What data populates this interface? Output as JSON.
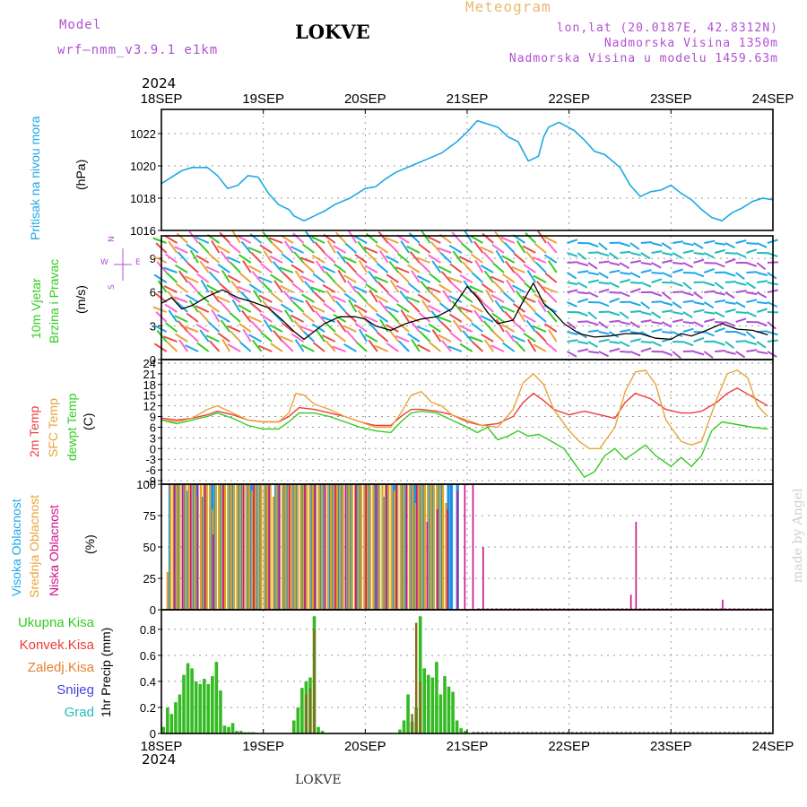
{
  "header": {
    "model_label": "Model",
    "model_name": "wrf–nmm_v3.9.1 e1km",
    "station": "LOKVE",
    "product": "Meteogram",
    "lonlat": "lon,lat (20.0187E, 42.8312N)",
    "altitude": "Nadmorska Visina 1350m",
    "model_altitude": "Nadmorska Visina u modelu 1459.63m",
    "footer_station": "LOKVE",
    "credit": "made by Angel"
  },
  "colors": {
    "pressure": "#1ea8e6",
    "temp_2m": "#ee3b3b",
    "sfc_temp": "#e8a43c",
    "dewpoint": "#33cc22",
    "cloud_high": "#1e90e6",
    "cloud_mid": "#daa520",
    "cloud_low": "#cc1188",
    "precip_total": "#33bb22",
    "precip_conv": "#e84c4c",
    "precip_frozen": "#e87f2e",
    "snow": "#4444dd",
    "hail": "#22bbbb",
    "header_purple": "#b050d0",
    "header_orange": "#e8b870"
  },
  "time_axis": {
    "year": "2024",
    "labels": [
      "18SEP",
      "19SEP",
      "20SEP",
      "21SEP",
      "22SEP",
      "23SEP",
      "24SEP"
    ]
  },
  "panels": {
    "pressure": {
      "label": "Pritisak na nivou mora",
      "unit": "(hPa)"
    },
    "wind": {
      "label1": "10m Vjetar",
      "label2": "Brzina i Pravac",
      "unit": "(m/s)",
      "compass": {
        "n": "N",
        "s": "S",
        "e": "E",
        "w": "W"
      }
    },
    "temp": {
      "label1": "2m Temp",
      "label2": "SFC Temp",
      "label3": "dewpt Temp",
      "unit": "(C)"
    },
    "cloud": {
      "label1": "Visoka Oblacnost",
      "label2": "Srednja Oblacnost",
      "label3": "Niska Oblacnost",
      "unit": "(%)"
    },
    "precip": {
      "label": "1hr Precip (mm)",
      "legend": [
        "Ukupna Kisa",
        "Konvek.Kisa",
        "Zaledj.Kisa",
        "Snijeg",
        "Grad"
      ]
    }
  },
  "chart_data": [
    {
      "type": "line",
      "title": "Pritisak na nivou mora",
      "ylabel": "(hPa)",
      "x_unit": "days since 18SEP 00UTC",
      "ylim": [
        1016,
        1023.5
      ],
      "yticks": [
        1016,
        1018,
        1020,
        1022
      ],
      "series": [
        {
          "name": "Pritisak na nivou mora",
          "x": [
            0,
            0.1,
            0.2,
            0.3,
            0.45,
            0.55,
            0.65,
            0.75,
            0.85,
            0.95,
            1.05,
            1.15,
            1.25,
            1.3,
            1.4,
            1.5,
            1.6,
            1.7,
            1.85,
            2.0,
            2.1,
            2.2,
            2.3,
            2.45,
            2.6,
            2.75,
            2.9,
            3.0,
            3.1,
            3.2,
            3.3,
            3.4,
            3.5,
            3.6,
            3.7,
            3.75,
            3.8,
            3.9,
            4.05,
            4.15,
            4.25,
            4.35,
            4.5,
            4.6,
            4.7,
            4.8,
            4.9,
            5.0,
            5.1,
            5.2,
            5.3,
            5.4,
            5.5,
            5.6,
            5.7,
            5.8,
            5.9,
            6.0
          ],
          "values": [
            1018.9,
            1019.3,
            1019.7,
            1019.9,
            1019.9,
            1019.4,
            1018.6,
            1018.8,
            1019.4,
            1019.3,
            1018.3,
            1017.6,
            1017.3,
            1016.9,
            1016.6,
            1016.9,
            1017.2,
            1017.6,
            1018.0,
            1018.6,
            1018.7,
            1019.2,
            1019.6,
            1020.0,
            1020.4,
            1020.8,
            1021.5,
            1022.1,
            1022.8,
            1022.6,
            1022.4,
            1021.8,
            1021.5,
            1020.3,
            1020.6,
            1021.8,
            1022.4,
            1022.7,
            1022.2,
            1021.6,
            1020.9,
            1020.7,
            1019.9,
            1018.8,
            1018.1,
            1018.4,
            1018.5,
            1018.8,
            1018.3,
            1017.9,
            1017.3,
            1016.8,
            1016.6,
            1017.1,
            1017.4,
            1017.8,
            1018.0,
            1017.9
          ]
        }
      ]
    },
    {
      "type": "line",
      "title": "10m Vjetar Brzina i Pravac",
      "ylabel": "(m/s)",
      "x_unit": "days since 18SEP 00UTC",
      "ylim": [
        0,
        11
      ],
      "yticks": [
        0,
        3,
        6,
        9
      ],
      "series": [
        {
          "name": "10m Vjetar",
          "x": [
            0,
            0.1,
            0.2,
            0.3,
            0.45,
            0.6,
            0.75,
            0.9,
            1.05,
            1.2,
            1.3,
            1.4,
            1.5,
            1.6,
            1.75,
            1.9,
            2.0,
            2.1,
            2.25,
            2.4,
            2.55,
            2.7,
            2.85,
            3.0,
            3.1,
            3.2,
            3.3,
            3.45,
            3.55,
            3.65,
            3.75,
            3.85,
            3.95,
            4.1,
            4.25,
            4.4,
            4.55,
            4.7,
            4.85,
            5.0,
            5.1,
            5.2,
            5.35,
            5.5,
            5.65,
            5.8,
            5.95
          ],
          "values": [
            5,
            5.5,
            4.5,
            4.8,
            5.6,
            6.2,
            5.5,
            5.1,
            4.6,
            3.4,
            2.5,
            1.8,
            2.5,
            3.2,
            3.8,
            3.8,
            3.6,
            3.0,
            2.6,
            3.2,
            3.6,
            3.8,
            4.5,
            6.5,
            5.5,
            4.2,
            3.2,
            3.5,
            5.2,
            6.8,
            5.0,
            4.2,
            3.2,
            2.3,
            2.0,
            2.1,
            2.3,
            2.3,
            1.9,
            1.8,
            2.3,
            2.1,
            2.6,
            3.2,
            2.7,
            2.6,
            2.2
          ]
        }
      ]
    },
    {
      "type": "line",
      "title": "2m Temp / SFC Temp / dewpt Temp",
      "ylabel": "(C)",
      "x_unit": "days since 18SEP 00UTC",
      "ylim": [
        -10,
        25
      ],
      "yticks": [
        -9,
        -6,
        -3,
        0,
        3,
        6,
        9,
        12,
        15,
        18,
        21,
        24
      ],
      "series": [
        {
          "name": "2m Temp",
          "x": [
            0,
            0.15,
            0.3,
            0.45,
            0.55,
            0.7,
            0.85,
            1.0,
            1.15,
            1.25,
            1.35,
            1.5,
            1.65,
            1.8,
            1.95,
            2.1,
            2.25,
            2.35,
            2.45,
            2.55,
            2.7,
            2.85,
            3.0,
            3.15,
            3.3,
            3.45,
            3.55,
            3.65,
            3.75,
            3.85,
            4.0,
            4.15,
            4.3,
            4.45,
            4.55,
            4.65,
            4.8,
            4.95,
            5.1,
            5.2,
            5.3,
            5.45,
            5.55,
            5.65,
            5.8,
            5.95
          ],
          "values": [
            8.5,
            8.0,
            8.5,
            9.5,
            10.5,
            9.5,
            8.0,
            7.5,
            7.5,
            9.0,
            11.5,
            11.0,
            10.0,
            9.0,
            7.5,
            6.5,
            6.5,
            9.0,
            11.0,
            11.0,
            10.5,
            9.5,
            7.5,
            6.5,
            7.0,
            9.0,
            13.0,
            15.5,
            13.5,
            11.0,
            9.5,
            10.5,
            9.5,
            8.5,
            13.0,
            15.5,
            14.0,
            11.0,
            10.0,
            10.0,
            10.5,
            13.0,
            15.5,
            17.0,
            14.5,
            12.0
          ]
        },
        {
          "name": "SFC Temp",
          "x": [
            0,
            0.15,
            0.3,
            0.45,
            0.55,
            0.7,
            0.85,
            1.0,
            1.15,
            1.25,
            1.32,
            1.4,
            1.5,
            1.65,
            1.8,
            1.95,
            2.1,
            2.25,
            2.35,
            2.45,
            2.55,
            2.65,
            2.75,
            2.85,
            3.0,
            3.15,
            3.3,
            3.45,
            3.55,
            3.65,
            3.75,
            3.85,
            4.0,
            4.1,
            4.2,
            4.3,
            4.45,
            4.55,
            4.65,
            4.75,
            4.85,
            4.95,
            5.1,
            5.2,
            5.3,
            5.45,
            5.55,
            5.65,
            5.75,
            5.85,
            5.95
          ],
          "values": [
            8.0,
            7.5,
            8.5,
            11.0,
            12.0,
            10.0,
            8.0,
            7.5,
            7.5,
            10.0,
            15.5,
            15.0,
            12.5,
            11.0,
            9.0,
            7.5,
            6.0,
            6.0,
            10.0,
            15.0,
            16.0,
            13.0,
            12.0,
            9.5,
            8.0,
            6.5,
            6.0,
            11.0,
            18.5,
            21.0,
            18.0,
            11.0,
            5.0,
            2.0,
            0.0,
            0.0,
            6.0,
            16.0,
            21.5,
            22.0,
            18.0,
            8.0,
            2.0,
            1.0,
            2.0,
            14.0,
            21.0,
            22.0,
            20.0,
            12.0,
            9.0
          ]
        },
        {
          "name": "dewpt Temp",
          "x": [
            0,
            0.15,
            0.3,
            0.45,
            0.55,
            0.7,
            0.85,
            1.0,
            1.15,
            1.25,
            1.35,
            1.5,
            1.65,
            1.8,
            1.95,
            2.1,
            2.25,
            2.35,
            2.45,
            2.55,
            2.7,
            2.85,
            3.0,
            3.1,
            3.2,
            3.3,
            3.4,
            3.5,
            3.6,
            3.7,
            3.8,
            3.95,
            4.05,
            4.15,
            4.25,
            4.35,
            4.45,
            4.55,
            4.65,
            4.75,
            4.85,
            5.0,
            5.1,
            5.2,
            5.3,
            5.4,
            5.5,
            5.6,
            5.7,
            5.8,
            5.95
          ],
          "values": [
            8.0,
            7.0,
            8.0,
            9.0,
            10.0,
            8.5,
            6.5,
            5.5,
            5.5,
            7.5,
            10.0,
            10.0,
            9.0,
            7.5,
            6.0,
            5.0,
            4.5,
            7.5,
            10.0,
            10.5,
            10.0,
            8.0,
            6.0,
            4.5,
            6.0,
            2.5,
            3.5,
            5.0,
            3.5,
            4.0,
            2.5,
            0.0,
            -4.0,
            -8.0,
            -6.5,
            -2.0,
            0.0,
            -3.0,
            -1.0,
            1.0,
            -2.0,
            -5.0,
            -2.5,
            -5.0,
            -2.0,
            5.0,
            7.5,
            7.0,
            6.5,
            6.0,
            5.5
          ]
        }
      ]
    },
    {
      "type": "bar",
      "title": "Visoka / Srednja / Niska Oblacnost",
      "ylabel": "(%)",
      "x_unit": "days since 18SEP 00UTC",
      "ylim": [
        0,
        100
      ],
      "yticks": [
        0,
        25,
        50,
        75,
        100
      ],
      "series": [
        {
          "name": "Visoka Oblacnost",
          "values_pct": [
            100,
            100,
            100,
            100,
            100,
            100,
            95,
            100,
            100,
            100,
            100,
            90,
            100,
            100,
            100,
            100,
            100,
            100,
            100,
            100,
            100,
            100,
            100,
            100,
            100,
            100,
            100,
            100,
            100,
            100,
            100,
            100,
            100,
            100,
            100,
            100,
            100,
            100,
            100,
            100,
            100,
            100,
            100,
            100,
            100,
            100,
            100,
            100,
            100,
            100,
            100,
            100,
            100,
            100,
            100,
            100,
            100,
            100,
            100,
            100,
            100,
            100,
            100,
            100,
            100,
            100,
            100,
            100,
            100,
            100,
            100,
            90,
            100,
            100,
            100,
            100,
            100,
            100,
            100,
            100,
            100,
            100,
            100,
            100,
            100,
            100,
            100,
            100,
            100,
            100,
            100,
            100,
            100,
            100,
            100,
            100,
            0,
            0,
            0,
            0,
            0
          ]
        },
        {
          "name": "Srednja Oblacnost",
          "values_pct": [
            30,
            100,
            100,
            100,
            100,
            100,
            100,
            100,
            100,
            100,
            90,
            100,
            100,
            100,
            100,
            80,
            100,
            100,
            100,
            100,
            100,
            100,
            100,
            100,
            100,
            100,
            100,
            100,
            95,
            100,
            100,
            100,
            100,
            100,
            100,
            90,
            100,
            100,
            100,
            100,
            100,
            100,
            100,
            100,
            100,
            100,
            100,
            100,
            100,
            100,
            100,
            100,
            100,
            100,
            100,
            100,
            100,
            100,
            100,
            100,
            100,
            100,
            100,
            100,
            100,
            100,
            100,
            100,
            100,
            100,
            100,
            100,
            100,
            100,
            100,
            95,
            100,
            100,
            100,
            100,
            100,
            100,
            85,
            100,
            100,
            100,
            100,
            100,
            100,
            100,
            100,
            100,
            85,
            0,
            0,
            0,
            0,
            0,
            0,
            0,
            0
          ]
        },
        {
          "name": "Niska Oblacnost",
          "x": [
            0.05,
            0.12,
            0.2,
            0.28,
            0.35,
            0.42,
            0.5,
            0.6,
            0.8,
            0.9,
            1.05,
            1.15,
            1.25,
            1.4,
            1.5,
            1.6,
            1.7,
            1.8,
            1.9,
            2.0,
            2.1,
            2.2,
            2.3,
            2.4,
            2.5,
            2.6,
            2.7,
            2.8,
            2.9,
            2.97,
            3.05,
            3.15,
            4.6,
            4.65,
            5.5
          ],
          "values": [
            0,
            100,
            100,
            100,
            100,
            100,
            60,
            100,
            100,
            100,
            100,
            100,
            100,
            100,
            100,
            100,
            100,
            100,
            100,
            100,
            100,
            100,
            100,
            100,
            100,
            70,
            80,
            80,
            95,
            100,
            100,
            50,
            12,
            70,
            8
          ]
        }
      ]
    },
    {
      "type": "bar",
      "title": "1hr Precip",
      "ylabel": "(mm)",
      "x_unit": "days since 18SEP 00UTC",
      "ylim": [
        0,
        0.95
      ],
      "yticks": [
        0,
        0.2,
        0.4,
        0.6,
        0.8
      ],
      "series": [
        {
          "name": "Ukupna Kisa",
          "x": [
            0.02,
            0.06,
            0.1,
            0.14,
            0.18,
            0.22,
            0.26,
            0.3,
            0.34,
            0.38,
            0.42,
            0.46,
            0.5,
            0.54,
            0.58,
            0.62,
            0.66,
            0.7,
            0.74,
            0.78,
            0.82,
            0.86,
            0.9,
            1.3,
            1.34,
            1.38,
            1.42,
            1.46,
            1.5,
            1.54,
            1.58,
            2.34,
            2.38,
            2.42,
            2.46,
            2.5,
            2.54,
            2.58,
            2.62,
            2.66,
            2.7,
            2.74,
            2.78,
            2.82,
            2.86,
            2.9,
            2.94,
            2.98
          ],
          "values": [
            0.05,
            0.2,
            0.15,
            0.24,
            0.3,
            0.45,
            0.54,
            0.5,
            0.4,
            0.38,
            0.42,
            0.38,
            0.44,
            0.55,
            0.33,
            0.06,
            0.05,
            0.08,
            0.02,
            0.02,
            0.01,
            0.01,
            0.01,
            0.1,
            0.2,
            0.35,
            0.4,
            0.43,
            0.9,
            0.05,
            0.02,
            0.03,
            0.1,
            0.3,
            0.09,
            0.2,
            0.9,
            0.5,
            0.45,
            0.43,
            0.55,
            0.3,
            0.44,
            0.36,
            0.32,
            0.1,
            0.04,
            0.02
          ]
        },
        {
          "name": "Konvek.Kisa",
          "x": [
            1.42,
            1.46,
            1.5,
            2.46,
            2.5,
            2.54
          ],
          "values": [
            0.3,
            0.35,
            0.8,
            0.15,
            0.85,
            0.4
          ]
        }
      ]
    }
  ]
}
